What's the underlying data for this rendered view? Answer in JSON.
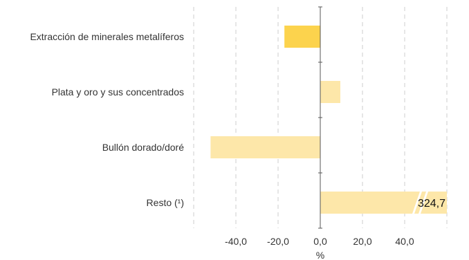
{
  "chart_data": {
    "type": "bar",
    "orientation": "horizontal",
    "categories": [
      "Extracción de minerales metalíferos",
      "Plata y oro y sus concentrados",
      "Bullón dorado/doré",
      "Resto (¹)"
    ],
    "values": [
      -17.0,
      9.5,
      -52.0,
      324.7
    ],
    "value_labels": [
      "",
      "",
      "",
      "324,7"
    ],
    "broken_bar": [
      false,
      false,
      false,
      true
    ],
    "x_ticks": [
      -40,
      -20,
      0,
      20,
      40
    ],
    "x_tick_labels": [
      "-40,0",
      "-20,0",
      "0,0",
      "20,0",
      "40,0"
    ],
    "xlim": [
      -60,
      60
    ],
    "xlabel": "%",
    "title": "",
    "ylabel": "",
    "grid": true,
    "bar_colors": [
      "#fcd34d",
      "#fde7a9",
      "#fde7a9",
      "#fde7a9"
    ]
  }
}
